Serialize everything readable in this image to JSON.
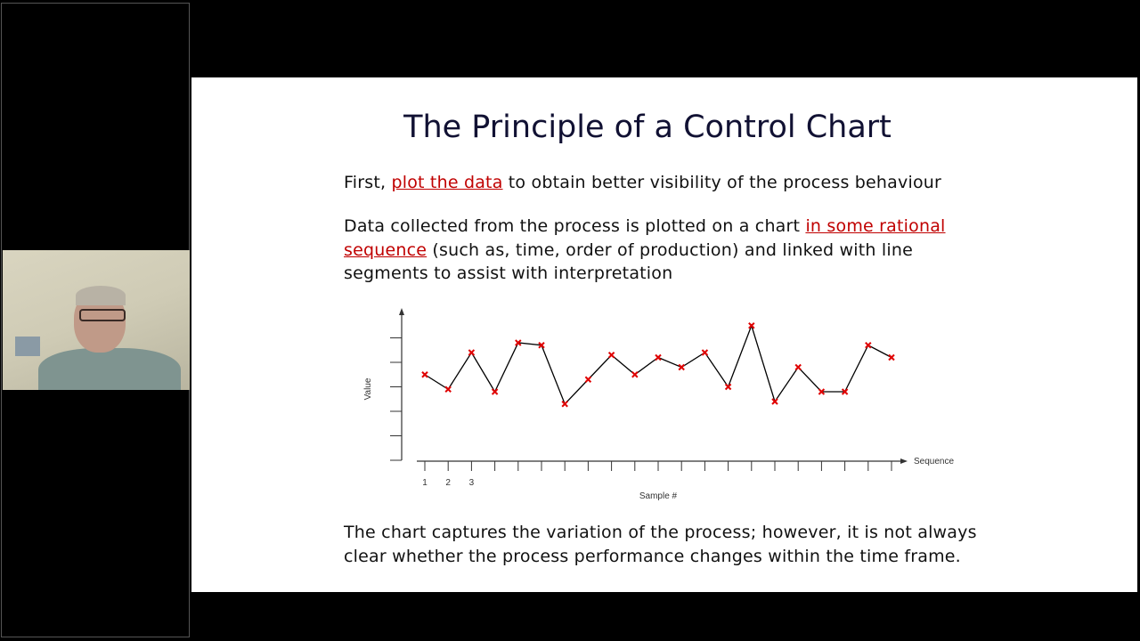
{
  "slide": {
    "title": "The Principle of a Control Chart",
    "p1": {
      "before": "First, ",
      "link": "plot the data",
      "after": " to obtain better visibility of the process behaviour"
    },
    "p2": {
      "before": "Data collected from the process is plotted on a chart ",
      "link": "in some rational sequence",
      "after": " (such as, time, order of production) and linked with line segments to assist with interpretation"
    },
    "p3": "The chart captures the variation of the process; however, it is not always clear whether the process performance changes within the time frame.",
    "link_color": "#c00000"
  },
  "chart_data": {
    "type": "line",
    "xlabel": "Sample #",
    "ylabel": "Value",
    "x_axis_arrow_label": "Sequence",
    "x_tick_labels": [
      "1",
      "2",
      "3"
    ],
    "x": [
      1,
      2,
      3,
      4,
      5,
      6,
      7,
      8,
      9,
      10,
      11,
      12,
      13,
      14,
      15,
      16,
      17,
      18,
      19,
      20,
      21
    ],
    "values": [
      3.5,
      2.9,
      4.4,
      2.8,
      4.8,
      4.7,
      2.3,
      3.3,
      4.3,
      3.5,
      4.2,
      3.8,
      4.4,
      3.0,
      5.5,
      2.4,
      3.8,
      2.8,
      2.8,
      4.7,
      4.2
    ],
    "ylim": [
      0,
      6.2
    ],
    "y_ticks": [
      1,
      2,
      3,
      4,
      5
    ],
    "marker": "x",
    "marker_color": "#e00000",
    "line_color": "#000000",
    "grid": false
  }
}
